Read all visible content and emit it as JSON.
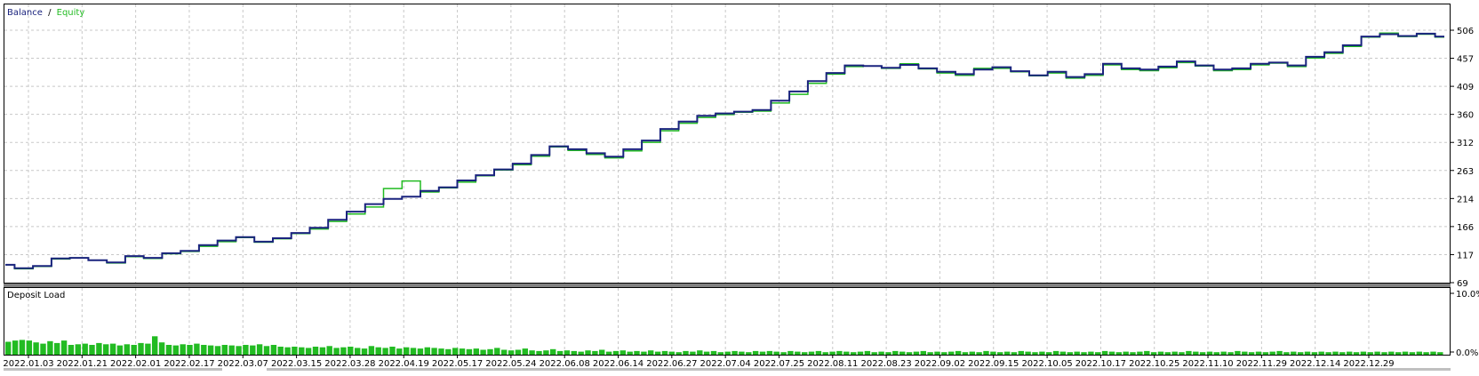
{
  "top_panel": {
    "legend_balance": "Balance",
    "legend_separator": "/",
    "legend_equity": "Equity",
    "balance_color": "#1a237e",
    "equity_color": "#22bb22"
  },
  "bottom_panel": {
    "title": "Deposit Load",
    "bar_color": "#22bb22"
  },
  "chart_data": [
    {
      "type": "line",
      "legend": [
        "Balance",
        "Equity"
      ],
      "y_ticks": [
        "506",
        "457",
        "409",
        "360",
        "312",
        "263",
        "214",
        "166",
        "117",
        "69"
      ],
      "ylim": [
        69,
        506
      ],
      "x_ticks": [
        "2022.01.03",
        "2022.01.21",
        "2022.02.01",
        "2022.02.17",
        "2022.03.07",
        "2022.03.15",
        "2022.03.28",
        "2022.04.19",
        "2022.05.17",
        "2022.05.24",
        "2022.06.08",
        "2022.06.14",
        "2022.06.27",
        "2022.07.04",
        "2022.07.25",
        "2022.08.11",
        "2022.08.23",
        "2022.09.02",
        "2022.09.15",
        "2022.10.05",
        "2022.10.17",
        "2022.10.25",
        "2022.11.10",
        "2022.11.29",
        "2022.12.14",
        "2022.12.29"
      ],
      "grid": true,
      "series": [
        {
          "name": "Balance",
          "values": [
            100,
            94,
            98,
            111,
            112,
            108,
            104,
            115,
            112,
            120,
            124,
            134,
            142,
            148,
            140,
            146,
            155,
            164,
            178,
            192,
            205,
            214,
            218,
            228,
            234,
            246,
            255,
            265,
            275,
            290,
            305,
            300,
            293,
            287,
            300,
            315,
            335,
            348,
            358,
            362,
            365,
            368,
            384,
            400,
            418,
            432,
            445,
            444,
            441,
            446,
            440,
            434,
            430,
            438,
            442,
            435,
            428,
            434,
            425,
            430,
            448,
            440,
            438,
            443,
            452,
            445,
            438,
            440,
            448,
            450,
            445,
            460,
            468,
            480,
            495,
            499,
            496,
            500,
            495
          ]
        },
        {
          "name": "Equity",
          "values": [
            100,
            93,
            97,
            110,
            112,
            108,
            103,
            114,
            111,
            119,
            123,
            132,
            140,
            147,
            139,
            145,
            154,
            162,
            175,
            188,
            200,
            232,
            245,
            226,
            233,
            243,
            254,
            264,
            273,
            288,
            304,
            298,
            291,
            285,
            297,
            312,
            332,
            345,
            355,
            360,
            364,
            366,
            380,
            395,
            414,
            430,
            443,
            444,
            440,
            448,
            439,
            432,
            428,
            440,
            440,
            434,
            427,
            432,
            423,
            428,
            446,
            438,
            436,
            441,
            450,
            444,
            436,
            438,
            446,
            449,
            443,
            458,
            466,
            478,
            494,
            501,
            495,
            499,
            494
          ]
        }
      ]
    },
    {
      "type": "bar",
      "title": "Deposit Load",
      "y_ticks": [
        "10.0%",
        "0.0%"
      ],
      "ylim": [
        0,
        10
      ],
      "series": [
        {
          "name": "Deposit Load",
          "values": [
            2.1,
            2.3,
            2.4,
            2.3,
            2.0,
            1.8,
            2.2,
            1.9,
            2.3,
            1.6,
            1.7,
            1.8,
            1.6,
            1.9,
            1.7,
            1.8,
            1.5,
            1.7,
            1.6,
            1.9,
            1.8,
            3.0,
            2.0,
            1.6,
            1.5,
            1.7,
            1.6,
            1.8,
            1.6,
            1.5,
            1.4,
            1.6,
            1.5,
            1.4,
            1.6,
            1.5,
            1.7,
            1.4,
            1.6,
            1.3,
            1.2,
            1.3,
            1.2,
            1.1,
            1.3,
            1.2,
            1.4,
            1.1,
            1.2,
            1.3,
            1.1,
            1.0,
            1.4,
            1.2,
            1.1,
            1.3,
            1.0,
            1.2,
            1.1,
            1.0,
            1.2,
            1.1,
            1.0,
            0.9,
            1.1,
            1.0,
            0.9,
            1.0,
            0.8,
            0.9,
            1.1,
            0.8,
            0.7,
            0.8,
            1.0,
            0.7,
            0.6,
            0.7,
            0.9,
            0.6,
            0.7,
            0.6,
            0.5,
            0.7,
            0.6,
            0.8,
            0.5,
            0.6,
            0.7,
            0.5,
            0.6,
            0.5,
            0.7,
            0.5,
            0.6,
            0.5,
            0.4,
            0.6,
            0.5,
            0.7,
            0.5,
            0.6,
            0.4,
            0.5,
            0.6,
            0.5,
            0.4,
            0.6,
            0.5,
            0.6,
            0.5,
            0.4,
            0.6,
            0.5,
            0.4,
            0.5,
            0.6,
            0.4,
            0.5,
            0.6,
            0.5,
            0.4,
            0.5,
            0.6,
            0.4,
            0.5,
            0.4,
            0.6,
            0.5,
            0.4,
            0.5,
            0.6,
            0.4,
            0.5,
            0.4,
            0.5,
            0.6,
            0.4,
            0.5,
            0.4,
            0.6,
            0.5,
            0.4,
            0.5,
            0.4,
            0.6,
            0.5,
            0.4,
            0.5,
            0.4,
            0.6,
            0.5,
            0.4,
            0.5,
            0.4,
            0.5,
            0.4,
            0.6,
            0.5,
            0.4,
            0.5,
            0.4,
            0.5,
            0.6,
            0.4,
            0.5,
            0.4,
            0.5,
            0.4,
            0.6,
            0.5,
            0.4,
            0.5,
            0.4,
            0.5,
            0.4,
            0.6,
            0.5,
            0.4,
            0.5,
            0.4,
            0.5,
            0.6,
            0.4,
            0.5,
            0.4,
            0.5,
            0.4,
            0.5,
            0.4,
            0.5,
            0.4,
            0.5,
            0.4,
            0.5,
            0.4,
            0.5,
            0.4,
            0.5,
            0.4,
            0.5,
            0.4,
            0.5,
            0.4,
            0.5,
            0.4
          ]
        }
      ]
    }
  ]
}
